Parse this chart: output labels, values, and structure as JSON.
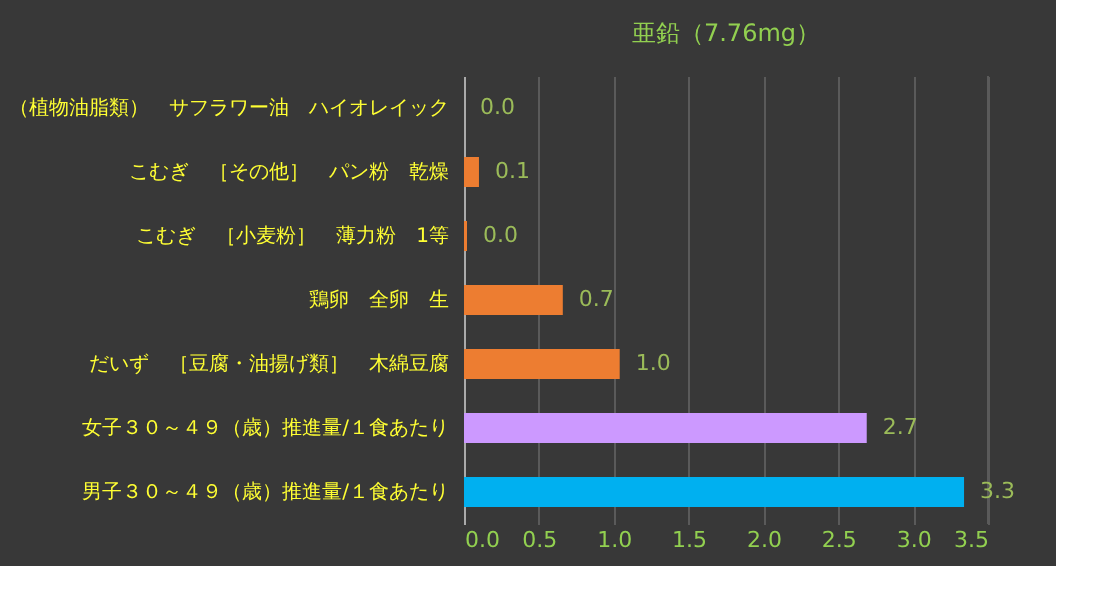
{
  "chart_data": {
    "type": "bar",
    "orientation": "horizontal",
    "title": "亜鉛（7.76mg）",
    "categories": [
      "（植物油脂類）　サフラワー油　ハイオレイック",
      "こむぎ　［その他］　パン粉　乾燥",
      "こむぎ　［小麦粉］　薄力粉　1等",
      "鶏卵　全卵　生",
      "だいず　［豆腐・油揚げ類］　木綿豆腐",
      "女子３０～４９（歳）推進量/１食あたり",
      "男子３０～４９（歳）推進量/１食あたり"
    ],
    "values": [
      0.0,
      0.1,
      0.02,
      0.66,
      1.04,
      2.69,
      3.34
    ],
    "colors": [
      "#ed7d31",
      "#ed7d31",
      "#ed7d31",
      "#ed7d31",
      "#ed7d31",
      "#cc99ff",
      "#00b0f0"
    ],
    "value_labels": [
      "0.0",
      "0.1",
      "0.0",
      "0.7",
      "1.0",
      "2.7",
      "3.3"
    ],
    "xlim": [
      0,
      3.5
    ],
    "xticks": [
      {
        "value": 0,
        "label": "0.0"
      },
      0.5,
      {
        "value": 1,
        "label": "1.0"
      },
      1.5,
      {
        "value": 2,
        "label": "2.0"
      },
      2.5,
      {
        "value": 3,
        "label": "3.0"
      },
      3.5
    ],
    "grid": "x"
  }
}
